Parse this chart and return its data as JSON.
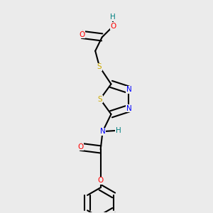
{
  "bg_color": "#ebebeb",
  "bond_color": "#000000",
  "bond_width": 1.5,
  "figsize": [
    3.0,
    3.0
  ],
  "dpi": 100,
  "atom_colors": {
    "C": "#000000",
    "H": "#008080",
    "O": "#ff0000",
    "N": "#0000ff",
    "S": "#ccaa00"
  },
  "xlim": [
    0,
    1
  ],
  "ylim": [
    0,
    1
  ]
}
